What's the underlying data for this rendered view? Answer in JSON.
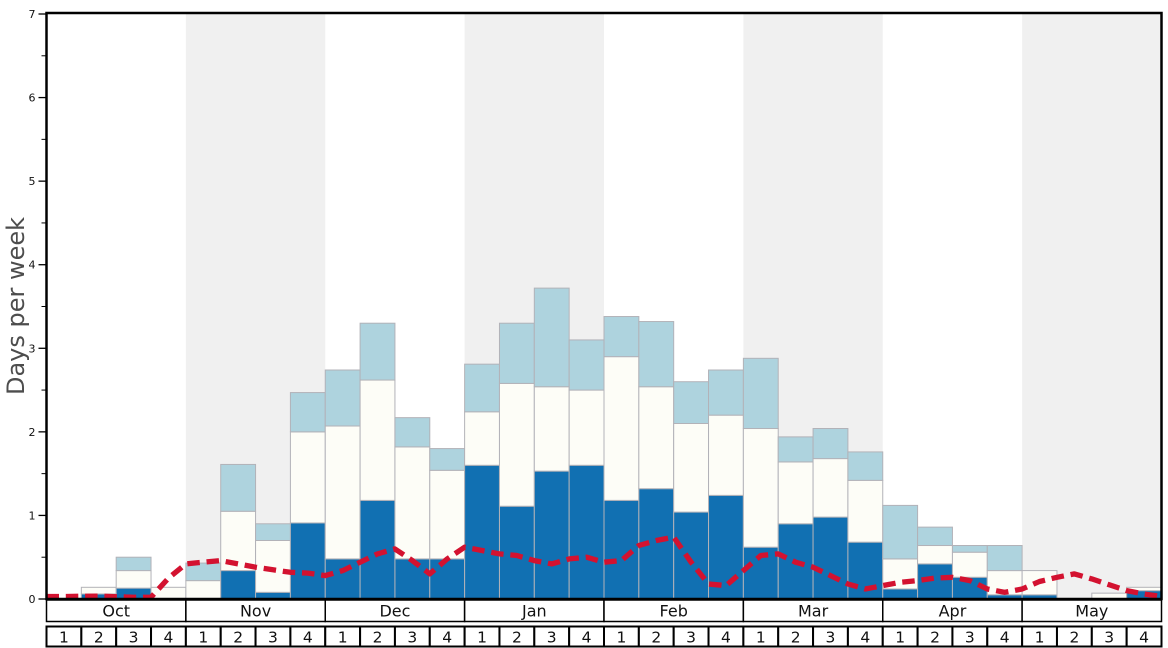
{
  "figure": {
    "ylabel": "Days per week"
  },
  "chart_data": {
    "type": "bar",
    "stacked": true,
    "title": "",
    "xlabel": "",
    "ylabel": "Days per week",
    "ylim": [
      0,
      7
    ],
    "y_major_ticks": [
      0,
      1,
      2,
      3,
      4,
      5,
      6,
      7
    ],
    "y_minor_step": 0.5,
    "grid": false,
    "legend": "none",
    "months": [
      "Oct",
      "Nov",
      "Dec",
      "Jan",
      "Feb",
      "Mar",
      "Apr",
      "May"
    ],
    "shaded_months": [
      "Nov",
      "Jan",
      "Mar",
      "May"
    ],
    "weeks_per_month": 4,
    "week_labels": [
      "1",
      "2",
      "3",
      "4"
    ],
    "categories": [
      "Oct-1",
      "Oct-2",
      "Oct-3",
      "Oct-4",
      "Nov-1",
      "Nov-2",
      "Nov-3",
      "Nov-4",
      "Dec-1",
      "Dec-2",
      "Dec-3",
      "Dec-4",
      "Jan-1",
      "Jan-2",
      "Jan-3",
      "Jan-4",
      "Feb-1",
      "Feb-2",
      "Feb-3",
      "Feb-4",
      "Mar-1",
      "Mar-2",
      "Mar-3",
      "Mar-4",
      "Apr-1",
      "Apr-2",
      "Apr-3",
      "Apr-4",
      "May-1",
      "May-2",
      "May-3",
      "May-4"
    ],
    "series": [
      {
        "name": "dark-blue-bottom-segment",
        "color": "#1170b2",
        "values": [
          0,
          0.06,
          0.13,
          0,
          0,
          0.34,
          0.08,
          0.91,
          0.48,
          1.18,
          0.48,
          0.48,
          1.6,
          1.11,
          1.53,
          1.6,
          1.18,
          1.32,
          1.04,
          1.24,
          0.62,
          0.9,
          0.98,
          0.68,
          0.12,
          0.42,
          0.26,
          0.05,
          0.05,
          0,
          0,
          0.1
        ]
      },
      {
        "name": "white-middle-segment",
        "color": "#fdfdf7",
        "values": [
          0,
          0.08,
          0.21,
          0.14,
          0.22,
          0.71,
          0.62,
          1.09,
          1.59,
          1.44,
          1.34,
          1.06,
          0.64,
          1.47,
          1.01,
          0.9,
          1.72,
          1.22,
          1.06,
          0.96,
          1.42,
          0.74,
          0.7,
          0.74,
          0.36,
          0.22,
          0.3,
          0.29,
          0.29,
          0,
          0.07,
          0.04
        ]
      },
      {
        "name": "light-blue-top-segment",
        "color": "#aed3de",
        "values": [
          0,
          0,
          0.16,
          0,
          0.21,
          0.56,
          0.2,
          0.47,
          0.67,
          0.68,
          0.35,
          0.26,
          0.57,
          0.72,
          1.18,
          0.6,
          0.48,
          0.78,
          0.5,
          0.54,
          0.84,
          0.3,
          0.36,
          0.34,
          0.64,
          0.22,
          0.08,
          0.3,
          0,
          0,
          0,
          0
        ]
      }
    ],
    "line_series": {
      "name": "red-dashed-line",
      "color": "#d31230",
      "style": "dashed",
      "points_weeks_vs_days": [
        [
          0,
          0.03
        ],
        [
          0.5,
          0.03
        ],
        [
          1.5,
          0.035
        ],
        [
          2.5,
          0.02
        ],
        [
          3,
          0.02
        ],
        [
          3.5,
          0.25
        ],
        [
          4,
          0.42
        ],
        [
          4.5,
          0.44
        ],
        [
          5,
          0.46
        ],
        [
          5.5,
          0.42
        ],
        [
          6,
          0.38
        ],
        [
          6.5,
          0.35
        ],
        [
          7,
          0.32
        ],
        [
          7.5,
          0.31
        ],
        [
          8,
          0.28
        ],
        [
          8.5,
          0.34
        ],
        [
          9,
          0.44
        ],
        [
          9.5,
          0.54
        ],
        [
          10,
          0.6
        ],
        [
          10.5,
          0.46
        ],
        [
          11,
          0.3
        ],
        [
          11.5,
          0.48
        ],
        [
          12,
          0.62
        ],
        [
          12.5,
          0.58
        ],
        [
          13,
          0.54
        ],
        [
          13.5,
          0.52
        ],
        [
          14,
          0.46
        ],
        [
          14.5,
          0.42
        ],
        [
          15,
          0.48
        ],
        [
          15.5,
          0.5
        ],
        [
          16,
          0.44
        ],
        [
          16.5,
          0.46
        ],
        [
          17,
          0.64
        ],
        [
          17.5,
          0.7
        ],
        [
          18,
          0.74
        ],
        [
          18.5,
          0.44
        ],
        [
          19,
          0.18
        ],
        [
          19.5,
          0.16
        ],
        [
          20,
          0.34
        ],
        [
          20.5,
          0.52
        ],
        [
          21,
          0.54
        ],
        [
          21.5,
          0.44
        ],
        [
          22,
          0.38
        ],
        [
          22.5,
          0.28
        ],
        [
          23,
          0.18
        ],
        [
          23.5,
          0.12
        ],
        [
          24,
          0.16
        ],
        [
          24.5,
          0.2
        ],
        [
          25,
          0.22
        ],
        [
          25.5,
          0.25
        ],
        [
          26,
          0.26
        ],
        [
          26.5,
          0.22
        ],
        [
          27,
          0.12
        ],
        [
          27.5,
          0.08
        ],
        [
          28,
          0.12
        ],
        [
          28.5,
          0.21
        ],
        [
          29,
          0.26
        ],
        [
          29.5,
          0.3
        ],
        [
          30,
          0.24
        ],
        [
          30.5,
          0.17
        ],
        [
          31,
          0.1
        ],
        [
          31.5,
          0.06
        ],
        [
          32,
          0.03
        ]
      ]
    },
    "colors": {
      "band_gray": "#f0f0f0",
      "bar_border": "#b2b2b8",
      "frame": "#000000",
      "cell_fill": "#ffffff",
      "tick_label": "#111111",
      "axis_label": "#4d4d4d"
    }
  }
}
